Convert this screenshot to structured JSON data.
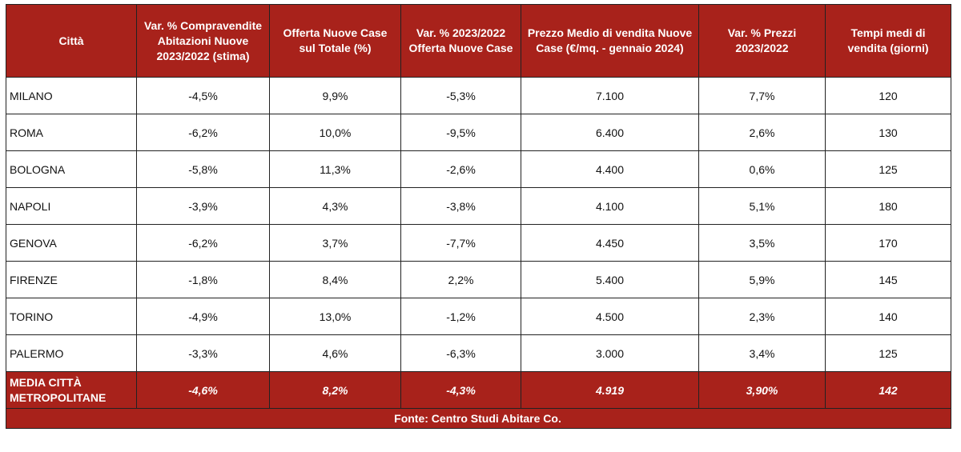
{
  "colors": {
    "header_bg": "#a8221b",
    "header_text": "#ffffff"
  },
  "table": {
    "headers": [
      "Città",
      "Var. % Compravendite Abitazioni Nuove 2023/2022 (stima)",
      "Offerta Nuove Case sul Totale (%)",
      "Var. % 2023/2022 Offerta Nuove Case",
      "Prezzo Medio di vendita Nuove Case (€/mq. - gennaio 2024)",
      "Var. % Prezzi 2023/2022",
      "Tempi medi di vendita (giorni)"
    ],
    "rows": [
      [
        "MILANO",
        "-4,5%",
        "9,9%",
        "-5,3%",
        "7.100",
        "7,7%",
        "120"
      ],
      [
        "ROMA",
        "-6,2%",
        "10,0%",
        "-9,5%",
        "6.400",
        "2,6%",
        "130"
      ],
      [
        "BOLOGNA",
        "-5,8%",
        "11,3%",
        "-2,6%",
        "4.400",
        "0,6%",
        "125"
      ],
      [
        "NAPOLI",
        "-3,9%",
        "4,3%",
        "-3,8%",
        "4.100",
        "5,1%",
        "180"
      ],
      [
        "GENOVA",
        "-6,2%",
        "3,7%",
        "-7,7%",
        "4.450",
        "3,5%",
        "170"
      ],
      [
        "FIRENZE",
        "-1,8%",
        "8,4%",
        "2,2%",
        "5.400",
        "5,9%",
        "145"
      ],
      [
        "TORINO",
        "-4,9%",
        "13,0%",
        "-1,2%",
        "4.500",
        "2,3%",
        "140"
      ],
      [
        "PALERMO",
        "-3,3%",
        "4,6%",
        "-6,3%",
        "3.000",
        "3,4%",
        "125"
      ]
    ],
    "average": [
      "MEDIA CITTÀ METROPOLITANE",
      "-4,6%",
      "8,2%",
      "-4,3%",
      "4.919",
      "3,90%",
      "142"
    ],
    "source": "Fonte: Centro Studi Abitare Co."
  }
}
